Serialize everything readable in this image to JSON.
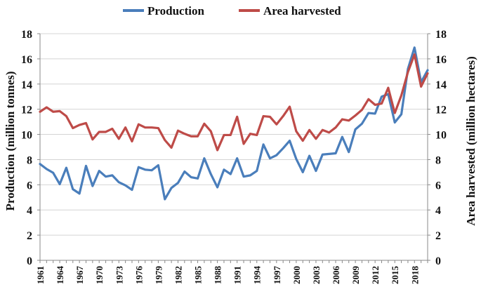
{
  "chart_data": {
    "type": "line",
    "title": "",
    "x": [
      1961,
      1962,
      1963,
      1964,
      1965,
      1966,
      1967,
      1968,
      1969,
      1970,
      1971,
      1972,
      1973,
      1974,
      1975,
      1976,
      1977,
      1978,
      1979,
      1980,
      1981,
      1982,
      1983,
      1984,
      1985,
      1986,
      1987,
      1988,
      1989,
      1990,
      1991,
      1992,
      1993,
      1994,
      1995,
      1996,
      1997,
      1998,
      1999,
      2000,
      2001,
      2002,
      2003,
      2004,
      2005,
      2006,
      2007,
      2008,
      2009,
      2010,
      2011,
      2012,
      2013,
      2014,
      2015,
      2016,
      2017,
      2018,
      2019,
      2020
    ],
    "x_tick_labels": [
      "1961",
      "1964",
      "1967",
      "1970",
      "1973",
      "1976",
      "1979",
      "1982",
      "1985",
      "1988",
      "1991",
      "1994",
      "1997",
      "2000",
      "2003",
      "2006",
      "2009",
      "2012",
      "2015",
      "2018"
    ],
    "series": [
      {
        "name": "Production",
        "axis": "left",
        "color": "#4a7ebb",
        "values": [
          7.65,
          7.25,
          6.95,
          6.05,
          7.35,
          5.65,
          5.3,
          7.5,
          5.9,
          7.1,
          6.65,
          6.75,
          6.2,
          5.95,
          5.6,
          7.4,
          7.2,
          7.15,
          7.55,
          4.85,
          5.75,
          6.15,
          7.05,
          6.6,
          6.5,
          8.1,
          6.85,
          5.8,
          7.2,
          6.85,
          8.1,
          6.65,
          6.75,
          7.1,
          9.2,
          8.1,
          8.35,
          8.9,
          9.5,
          8.05,
          7.0,
          8.3,
          7.1,
          8.4,
          8.45,
          8.5,
          9.8,
          8.6,
          10.4,
          10.85,
          11.7,
          11.65,
          13.0,
          13.2,
          10.95,
          11.6,
          15.2,
          16.9,
          14.15,
          15.1
        ]
      },
      {
        "name": "Area harvested",
        "axis": "right",
        "color": "#be4b48",
        "values": [
          11.8,
          12.15,
          11.8,
          11.85,
          11.45,
          10.5,
          10.75,
          10.9,
          9.6,
          10.2,
          10.2,
          10.45,
          9.65,
          10.55,
          9.45,
          10.8,
          10.55,
          10.55,
          10.5,
          9.55,
          8.95,
          10.3,
          10.05,
          9.85,
          9.85,
          10.85,
          10.25,
          8.75,
          9.95,
          9.95,
          11.4,
          9.25,
          10.05,
          9.95,
          11.45,
          11.4,
          10.8,
          11.45,
          12.2,
          10.25,
          9.5,
          10.35,
          9.65,
          10.35,
          10.15,
          10.55,
          11.2,
          11.1,
          11.5,
          11.95,
          12.8,
          12.35,
          12.45,
          13.7,
          11.7,
          13.1,
          14.95,
          16.35,
          13.8,
          14.85
        ]
      }
    ],
    "ylabel": "Production (million tonnes)",
    "y2label": "Area harvested (million hectares)",
    "ylim": [
      0,
      18
    ],
    "y2lim": [
      0,
      18
    ],
    "yticks": [
      0,
      2,
      4,
      6,
      8,
      10,
      12,
      14,
      16,
      18
    ],
    "y2ticks": [
      0,
      2,
      4,
      6,
      8,
      10,
      12,
      14,
      16,
      18
    ],
    "grid": true,
    "legend_position": "top-center"
  }
}
